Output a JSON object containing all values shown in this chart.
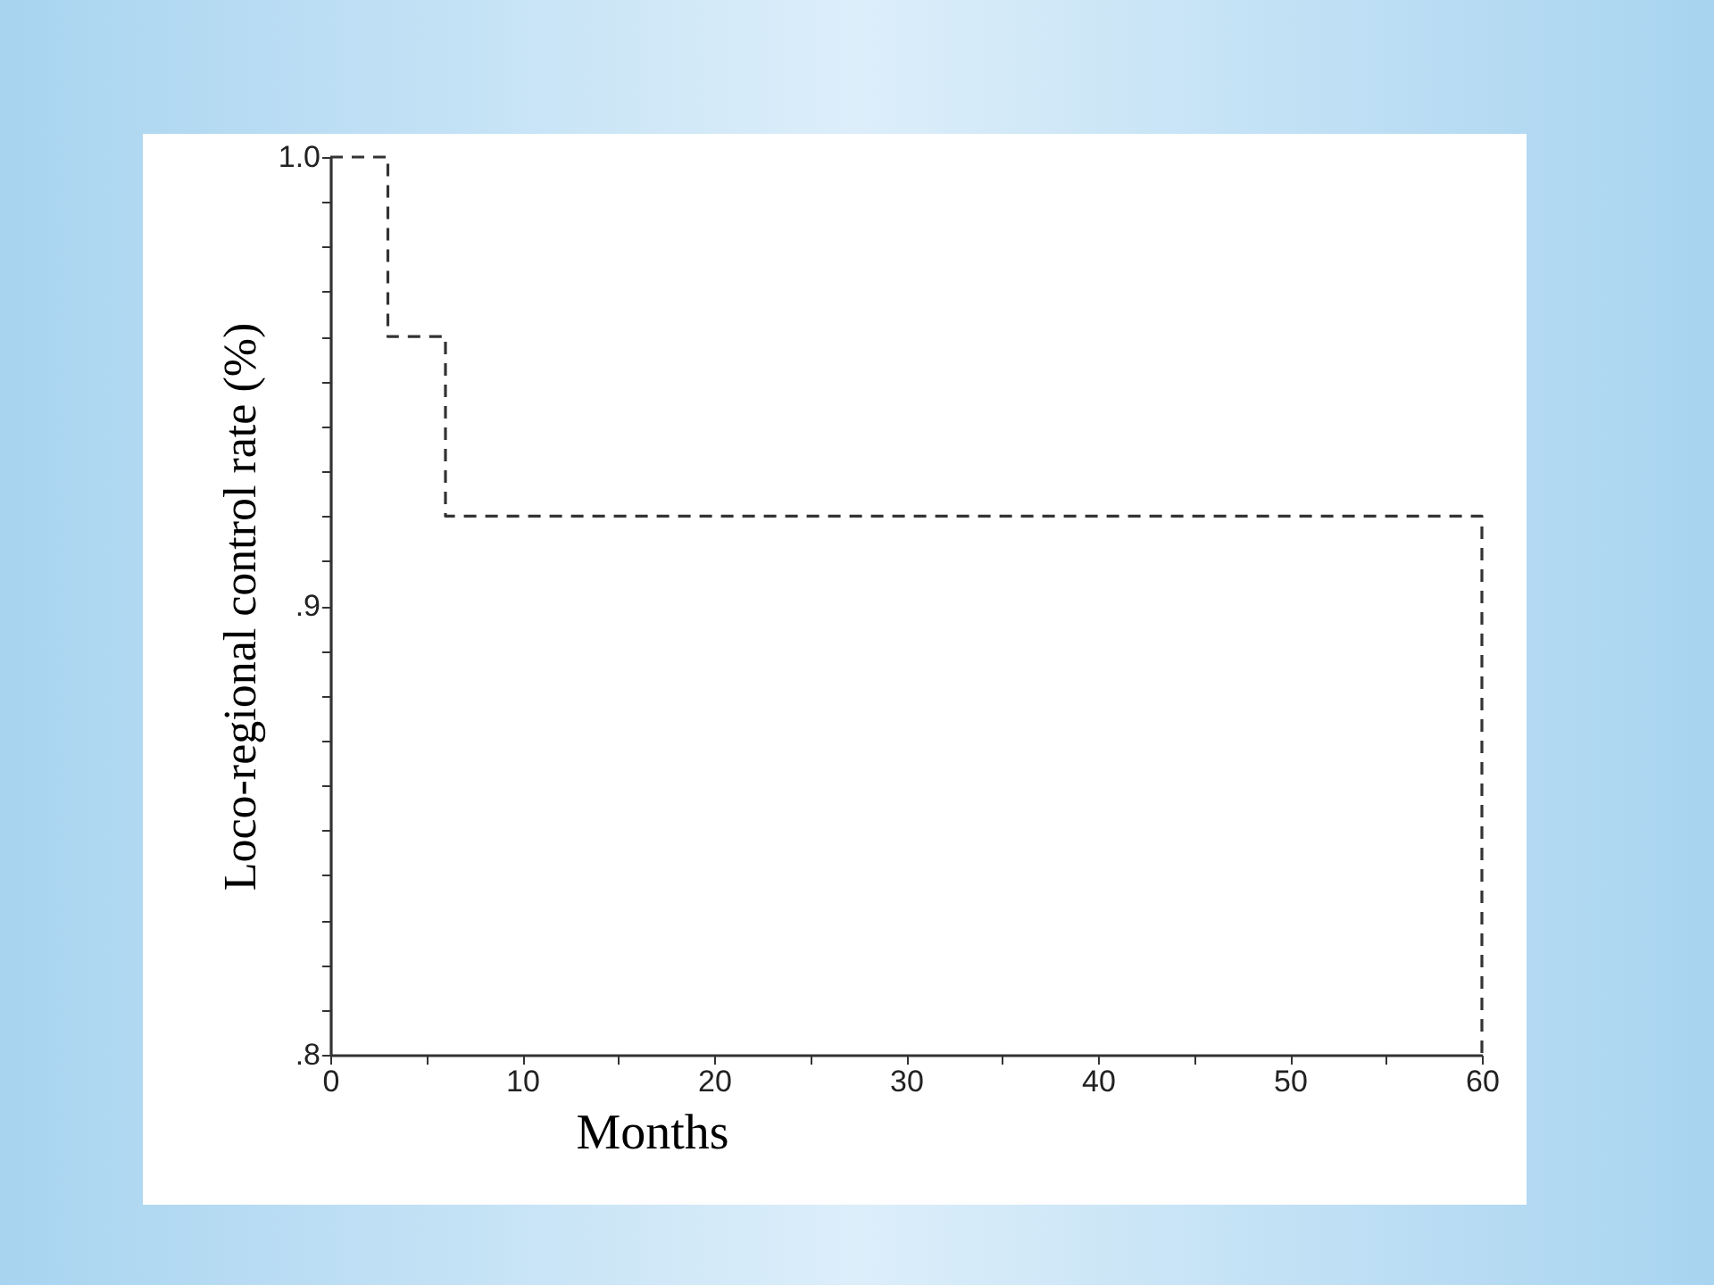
{
  "chart_data": {
    "type": "step",
    "xlabel": "Months",
    "ylabel": "Loco-regional control rate (%)",
    "x": [
      0,
      3,
      6,
      60,
      60
    ],
    "series": [
      {
        "color": "#333333",
        "values": [
          1.0,
          0.96,
          0.92,
          0.92,
          0.8
        ]
      }
    ],
    "line_style": "dashed",
    "marker": "none",
    "grid": false,
    "xlim": [
      0,
      60
    ],
    "xticks": [
      0,
      {
        "value": 5,
        "label": null
      },
      10,
      {
        "value": 15,
        "label": null
      },
      20,
      {
        "value": 25,
        "label": null
      },
      30,
      {
        "value": 35,
        "label": null
      },
      40,
      {
        "value": 45,
        "label": null
      },
      50,
      {
        "value": 55,
        "label": null
      },
      60
    ],
    "ylim": [
      0.8,
      1.0
    ],
    "yticks": [
      {
        "value": 0.8,
        "label": ".8"
      },
      {
        "value": 0.81,
        "label": null
      },
      {
        "value": 0.82,
        "label": null
      },
      {
        "value": 0.83,
        "label": null
      },
      {
        "value": 0.84,
        "label": null
      },
      {
        "value": 0.85,
        "label": null
      },
      {
        "value": 0.86,
        "label": null
      },
      {
        "value": 0.87,
        "label": null
      },
      {
        "value": 0.88,
        "label": null
      },
      {
        "value": 0.89,
        "label": null
      },
      {
        "value": 0.9,
        "label": ".9"
      },
      {
        "value": 0.91,
        "label": null
      },
      {
        "value": 0.92,
        "label": null
      },
      {
        "value": 0.93,
        "label": null
      },
      {
        "value": 0.94,
        "label": null
      },
      {
        "value": 0.95,
        "label": null
      },
      {
        "value": 0.96,
        "label": null
      },
      {
        "value": 0.97,
        "label": null
      },
      {
        "value": 0.98,
        "label": null
      },
      {
        "value": 0.99,
        "label": null
      },
      {
        "value": 1.0,
        "label": "1.0"
      }
    ]
  }
}
